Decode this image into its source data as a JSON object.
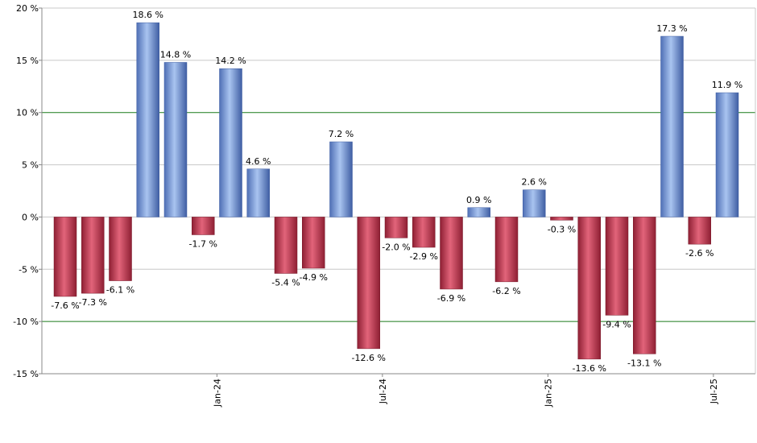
{
  "chart_data": {
    "type": "bar",
    "title": "",
    "xlabel": "",
    "ylabel": "",
    "ylim": [
      -15,
      20
    ],
    "y_ticks": [
      20,
      15,
      10,
      5,
      0,
      -5,
      -10,
      -15
    ],
    "y_tick_labels": [
      "20 %",
      "15 %",
      "10 %",
      "5 %",
      "0 %",
      "-5 %",
      "-10 %",
      "-15 %"
    ],
    "highlight_lines": [
      10,
      -10
    ],
    "x_tick_labels": [
      {
        "label": "Jan-24",
        "after_bar": 5
      },
      {
        "label": "Jul-24",
        "after_bar": 11
      },
      {
        "label": "Jan-25",
        "after_bar": 17
      },
      {
        "label": "Jul-25",
        "after_bar": 23
      }
    ],
    "values": [
      -7.6,
      -7.3,
      -6.1,
      18.6,
      14.8,
      -1.7,
      14.2,
      4.6,
      -5.4,
      -4.9,
      7.2,
      -12.6,
      -2.0,
      -2.9,
      -6.9,
      0.9,
      -6.2,
      2.6,
      -0.3,
      -13.6,
      -9.4,
      -13.1,
      17.3,
      -2.6,
      11.9
    ],
    "value_labels": [
      "-7.6 %",
      "-7.3 %",
      "-6.1 %",
      "18.6 %",
      "14.8 %",
      "-1.7 %",
      "14.2 %",
      "4.6 %",
      "-5.4 %",
      "-4.9 %",
      "7.2 %",
      "-12.6 %",
      "-2.0 %",
      "-2.9 %",
      "-6.9 %",
      "0.9 %",
      "-6.2 %",
      "2.6 %",
      "-0.3 %",
      "-13.6 %",
      "-9.4 %",
      "-13.1 %",
      "17.3 %",
      "-2.6 %",
      "11.9 %"
    ],
    "positive_color": "#6f93d8",
    "negative_color": "#c8344e",
    "grid": true,
    "highlight_line_color": "#1a7a1a",
    "grid_color": "#c8c8c8",
    "legend": "none"
  }
}
